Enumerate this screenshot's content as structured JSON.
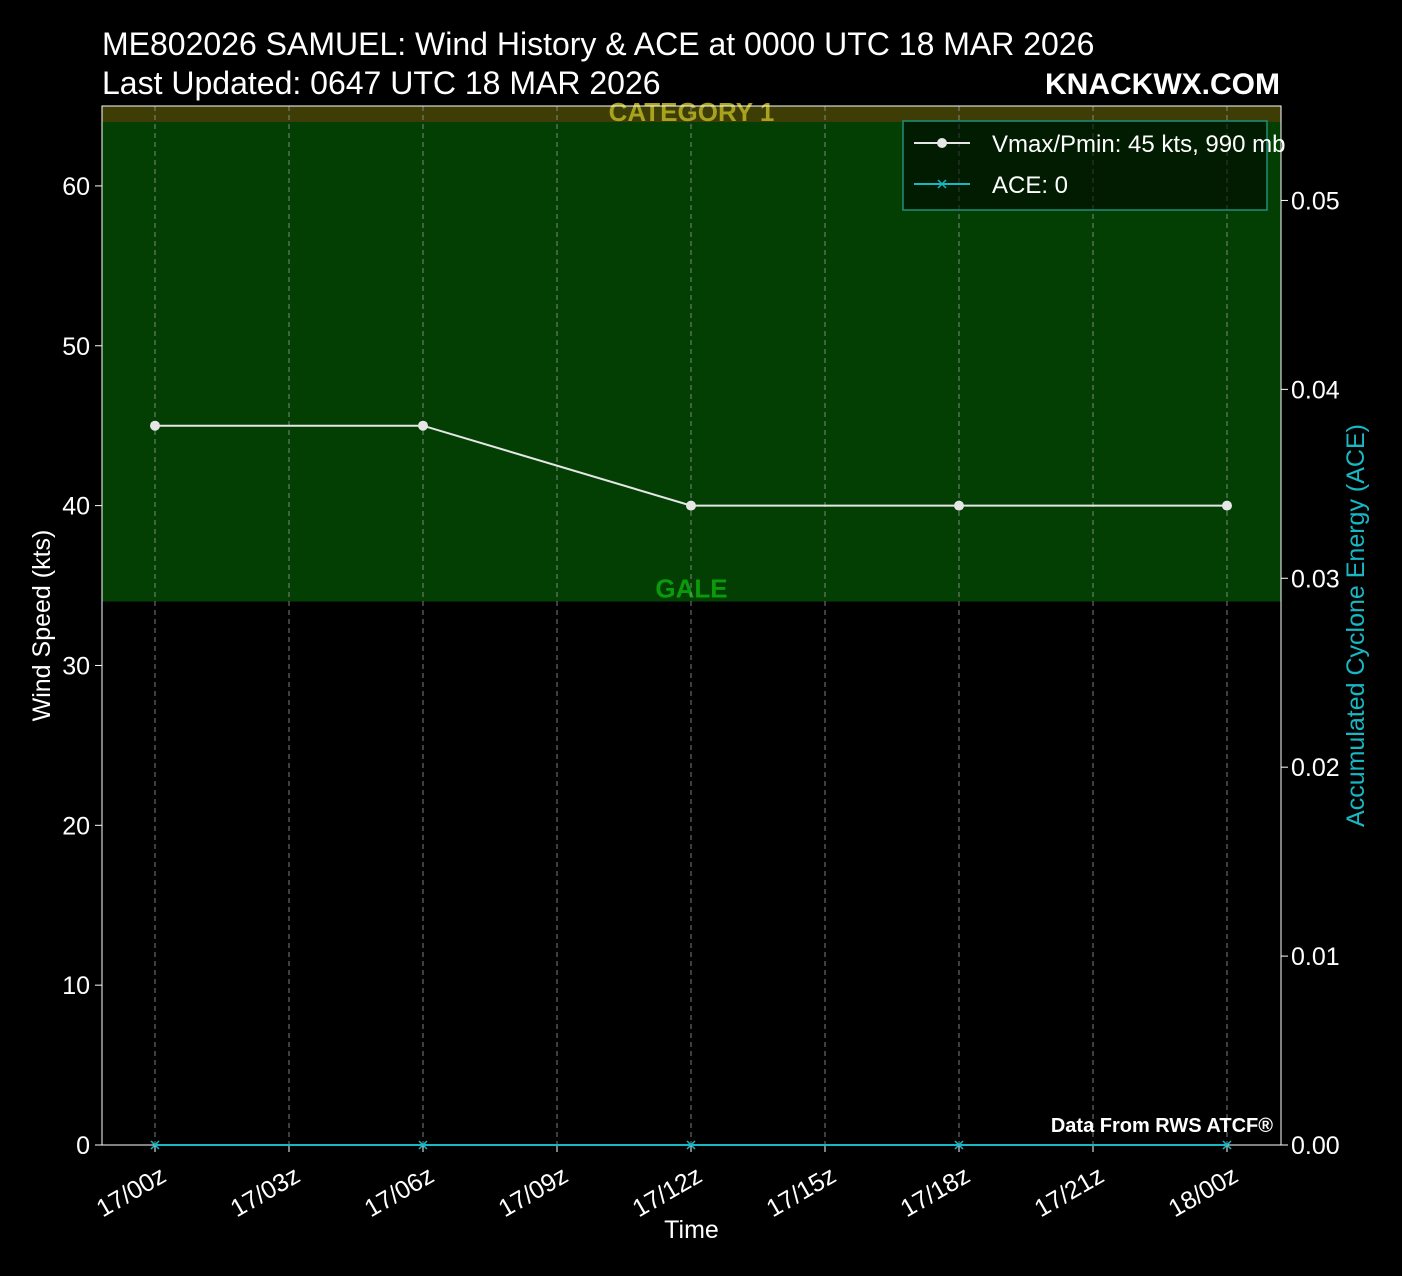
{
  "header": {
    "title": "ME802026 SAMUEL: Wind History & ACE at 0000 UTC 18 MAR 2026",
    "subtitle": "Last Updated: 0647 UTC 18 MAR 2026",
    "brand": "KNACKWX.COM"
  },
  "chart_data": {
    "type": "line",
    "x": [
      "17/00z",
      "17/06z",
      "17/12z",
      "17/18z",
      "18/00z"
    ],
    "x_ticks": [
      "17/00z",
      "17/03z",
      "17/06z",
      "17/09z",
      "17/12z",
      "17/15z",
      "17/18z",
      "17/21z",
      "18/00z"
    ],
    "xlabel": "Time",
    "ylabel": "Wind Speed (kts)",
    "y2label": "Accumulated Cyclone Energy (ACE)",
    "ylim": [
      0,
      65
    ],
    "y2lim": [
      0,
      0.055
    ],
    "y_ticks": [
      "0",
      "10",
      "20",
      "30",
      "40",
      "50",
      "60"
    ],
    "y2_ticks": [
      "0.00",
      "0.01",
      "0.02",
      "0.03",
      "0.04",
      "0.05"
    ],
    "grid": "vertical dashed",
    "legend_position": "top-right",
    "series": [
      {
        "name": "Vmax/Pmin: 45 kts, 990 mb",
        "axis": "left",
        "values": [
          45,
          45,
          40,
          40,
          40
        ],
        "color": "#e6e6e6",
        "marker": "circle"
      },
      {
        "name": "ACE: 0",
        "axis": "right",
        "values": [
          0,
          0,
          0,
          0,
          0
        ],
        "color": "#17b8c4",
        "marker": "x"
      }
    ],
    "bands": [
      {
        "label": "GALE",
        "from": 34,
        "to": 64,
        "color": "#033f03",
        "label_color": "#0c9a0c"
      },
      {
        "label": "CATEGORY 1",
        "from": 64,
        "to": 83,
        "color": "#3d3d05",
        "label_color": "#a9a21c"
      }
    ],
    "annotation": "Data From RWS ATCF®"
  }
}
